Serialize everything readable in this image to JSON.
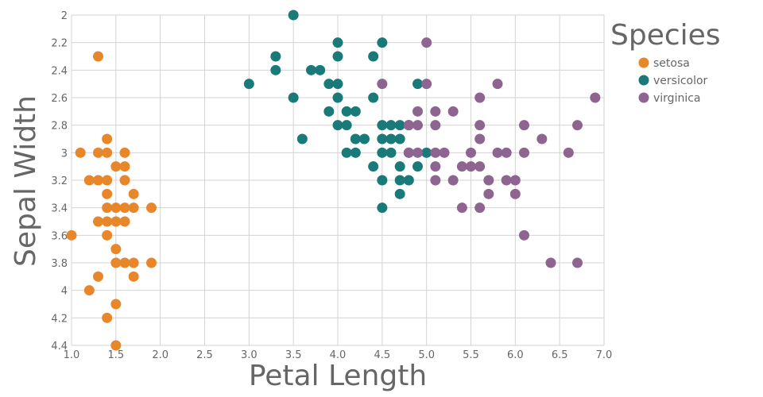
{
  "chart_data": {
    "type": "scatter",
    "xlabel": "Petal Length",
    "ylabel": "Sepal Width",
    "xlim": [
      1.0,
      7.0
    ],
    "ylim": [
      2.0,
      4.4
    ],
    "y_inverted": true,
    "x_ticks": [
      "1.0",
      "1.5",
      "2.0",
      "2.5",
      "3.0",
      "3.5",
      "4.0",
      "4.5",
      "5.0",
      "5.5",
      "6.0",
      "6.5",
      "7.0"
    ],
    "y_ticks": [
      "2",
      "2.2",
      "2.4",
      "2.6",
      "2.8",
      "3",
      "3.2",
      "3.4",
      "3.6",
      "3.8",
      "4",
      "4.2",
      "4.4"
    ],
    "grid": true,
    "legend": {
      "title": "Species",
      "position": "top-right"
    },
    "series": [
      {
        "name": "setosa",
        "color": "#e8872a",
        "points": [
          [
            1.3,
            2.3
          ],
          [
            1.1,
            3.0
          ],
          [
            1.3,
            3.0
          ],
          [
            1.4,
            3.0
          ],
          [
            1.6,
            3.0
          ],
          [
            1.4,
            2.9
          ],
          [
            1.5,
            3.1
          ],
          [
            1.6,
            3.1
          ],
          [
            1.2,
            3.2
          ],
          [
            1.3,
            3.2
          ],
          [
            1.4,
            3.2
          ],
          [
            1.6,
            3.2
          ],
          [
            1.4,
            3.3
          ],
          [
            1.7,
            3.3
          ],
          [
            1.4,
            3.4
          ],
          [
            1.5,
            3.4
          ],
          [
            1.6,
            3.4
          ],
          [
            1.7,
            3.4
          ],
          [
            1.9,
            3.4
          ],
          [
            1.3,
            3.5
          ],
          [
            1.4,
            3.5
          ],
          [
            1.5,
            3.5
          ],
          [
            1.6,
            3.5
          ],
          [
            1.0,
            3.6
          ],
          [
            1.4,
            3.6
          ],
          [
            1.5,
            3.7
          ],
          [
            1.5,
            3.8
          ],
          [
            1.6,
            3.8
          ],
          [
            1.7,
            3.8
          ],
          [
            1.9,
            3.8
          ],
          [
            1.3,
            3.9
          ],
          [
            1.7,
            3.9
          ],
          [
            1.2,
            4.0
          ],
          [
            1.5,
            4.1
          ],
          [
            1.4,
            4.2
          ],
          [
            1.5,
            4.4
          ]
        ]
      },
      {
        "name": "versicolor",
        "color": "#1a7a7a",
        "points": [
          [
            3.5,
            2.0
          ],
          [
            4.0,
            2.2
          ],
          [
            4.5,
            2.2
          ],
          [
            3.3,
            2.3
          ],
          [
            4.0,
            2.3
          ],
          [
            4.4,
            2.3
          ],
          [
            3.3,
            2.4
          ],
          [
            3.7,
            2.4
          ],
          [
            3.8,
            2.4
          ],
          [
            3.0,
            2.5
          ],
          [
            3.9,
            2.5
          ],
          [
            4.0,
            2.5
          ],
          [
            4.9,
            2.5
          ],
          [
            3.5,
            2.6
          ],
          [
            4.0,
            2.6
          ],
          [
            4.4,
            2.6
          ],
          [
            3.9,
            2.7
          ],
          [
            4.1,
            2.7
          ],
          [
            4.2,
            2.7
          ],
          [
            4.0,
            2.8
          ],
          [
            4.1,
            2.8
          ],
          [
            4.5,
            2.8
          ],
          [
            4.6,
            2.8
          ],
          [
            4.7,
            2.8
          ],
          [
            4.8,
            2.8
          ],
          [
            3.6,
            2.9
          ],
          [
            4.2,
            2.9
          ],
          [
            4.3,
            2.9
          ],
          [
            4.5,
            2.9
          ],
          [
            4.6,
            2.9
          ],
          [
            4.7,
            2.9
          ],
          [
            4.1,
            3.0
          ],
          [
            4.2,
            3.0
          ],
          [
            4.5,
            3.0
          ],
          [
            4.6,
            3.0
          ],
          [
            4.8,
            3.0
          ],
          [
            5.0,
            3.0
          ],
          [
            4.4,
            3.1
          ],
          [
            4.7,
            3.1
          ],
          [
            4.9,
            3.1
          ],
          [
            4.5,
            3.2
          ],
          [
            4.7,
            3.2
          ],
          [
            4.8,
            3.2
          ],
          [
            4.7,
            3.3
          ],
          [
            4.5,
            3.4
          ]
        ]
      },
      {
        "name": "virginica",
        "color": "#8e6490",
        "points": [
          [
            5.0,
            2.2
          ],
          [
            4.5,
            2.5
          ],
          [
            5.0,
            2.5
          ],
          [
            5.8,
            2.5
          ],
          [
            5.6,
            2.6
          ],
          [
            6.9,
            2.6
          ],
          [
            4.9,
            2.7
          ],
          [
            5.1,
            2.7
          ],
          [
            5.3,
            2.7
          ],
          [
            4.8,
            2.8
          ],
          [
            4.9,
            2.8
          ],
          [
            5.1,
            2.8
          ],
          [
            5.6,
            2.8
          ],
          [
            6.1,
            2.8
          ],
          [
            6.7,
            2.8
          ],
          [
            5.6,
            2.9
          ],
          [
            6.3,
            2.9
          ],
          [
            4.8,
            3.0
          ],
          [
            4.9,
            3.0
          ],
          [
            5.1,
            3.0
          ],
          [
            5.2,
            3.0
          ],
          [
            5.5,
            3.0
          ],
          [
            5.8,
            3.0
          ],
          [
            5.9,
            3.0
          ],
          [
            6.1,
            3.0
          ],
          [
            6.6,
            3.0
          ],
          [
            5.1,
            3.1
          ],
          [
            5.4,
            3.1
          ],
          [
            5.5,
            3.1
          ],
          [
            5.6,
            3.1
          ],
          [
            5.1,
            3.2
          ],
          [
            5.3,
            3.2
          ],
          [
            5.7,
            3.2
          ],
          [
            5.9,
            3.2
          ],
          [
            6.0,
            3.2
          ],
          [
            5.7,
            3.3
          ],
          [
            6.0,
            3.3
          ],
          [
            5.4,
            3.4
          ],
          [
            5.6,
            3.4
          ],
          [
            6.1,
            3.6
          ],
          [
            6.4,
            3.8
          ],
          [
            6.7,
            3.8
          ]
        ]
      }
    ]
  }
}
